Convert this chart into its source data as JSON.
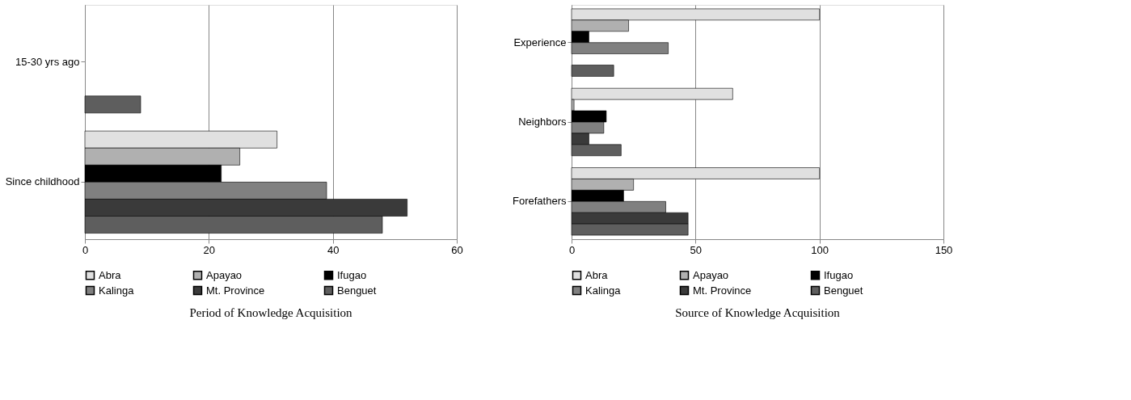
{
  "chart_data": [
    {
      "type": "bar",
      "orientation": "horizontal",
      "title": "Period of Knowledge Acquisition",
      "categories": [
        "15-30 yrs ago",
        "Since childhood"
      ],
      "xlim": [
        0,
        60
      ],
      "xticks": [
        0,
        20,
        40,
        60
      ],
      "grid": "x",
      "legend": "bottom",
      "series": [
        {
          "name": "Abra",
          "color": "#e0e0e0",
          "values": [
            0,
            31
          ]
        },
        {
          "name": "Apayao",
          "color": "#b0b0b0",
          "values": [
            0,
            25
          ]
        },
        {
          "name": "Ifugao",
          "color": "#000000",
          "values": [
            0,
            22
          ]
        },
        {
          "name": "Kalinga",
          "color": "#808080",
          "values": [
            0,
            39
          ]
        },
        {
          "name": "Mt. Province",
          "color": "#3a3a3a",
          "values": [
            0,
            52
          ]
        },
        {
          "name": "Benguet",
          "color": "#5e5e5e",
          "values": [
            9,
            48
          ]
        }
      ]
    },
    {
      "type": "bar",
      "orientation": "horizontal",
      "title": "Source of Knowledge Acquisition",
      "categories": [
        "Experience",
        "Neighbors",
        "Forefathers"
      ],
      "xlim": [
        0,
        150
      ],
      "xticks": [
        0,
        50,
        100,
        150
      ],
      "grid": "x",
      "legend": "bottom",
      "series": [
        {
          "name": "Abra",
          "color": "#e0e0e0",
          "values": [
            100,
            65,
            100
          ]
        },
        {
          "name": "Apayao",
          "color": "#b0b0b0",
          "values": [
            23,
            1,
            25
          ]
        },
        {
          "name": "Ifugao",
          "color": "#000000",
          "values": [
            7,
            14,
            21
          ]
        },
        {
          "name": "Kalinga",
          "color": "#808080",
          "values": [
            39,
            13,
            38
          ]
        },
        {
          "name": "Mt. Province",
          "color": "#3a3a3a",
          "values": [
            0,
            7,
            47
          ]
        },
        {
          "name": "Benguet",
          "color": "#5e5e5e",
          "values": [
            17,
            20,
            47
          ]
        }
      ]
    }
  ]
}
